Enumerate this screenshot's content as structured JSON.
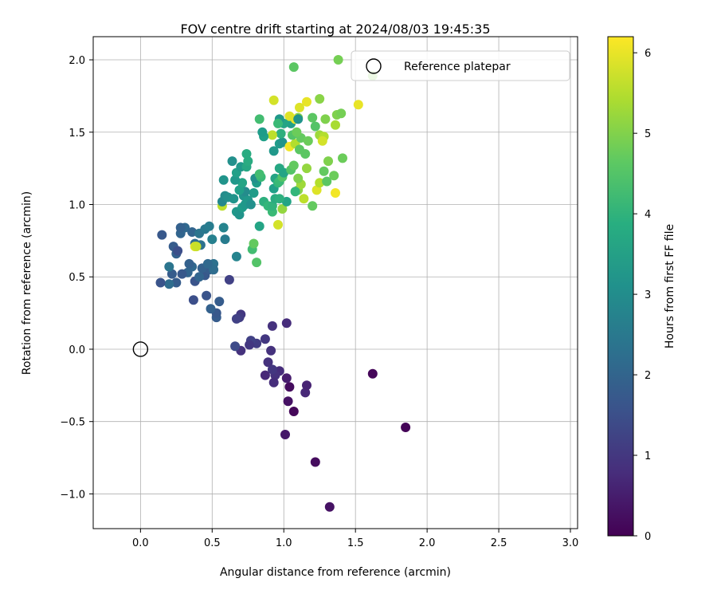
{
  "chart_data": {
    "type": "scatter",
    "title": "FOV centre drift starting at 2024/08/03 19:45:35",
    "xlabel": "Angular distance from reference (arcmin)",
    "ylabel": "Rotation from reference (arcmin)",
    "xlim": [
      -0.33,
      3.05
    ],
    "ylim": [
      -1.24,
      2.16
    ],
    "xticks": [
      0.0,
      0.5,
      1.0,
      1.5,
      2.0,
      2.5,
      3.0
    ],
    "xtick_labels": [
      "0.0",
      "0.5",
      "1.0",
      "1.5",
      "2.0",
      "2.5",
      "3.0"
    ],
    "yticks": [
      -1.0,
      -0.5,
      0.0,
      0.5,
      1.0,
      1.5,
      2.0
    ],
    "ytick_labels": [
      "−1.0",
      "−0.5",
      "0.0",
      "0.5",
      "1.0",
      "1.5",
      "2.0"
    ],
    "grid": true,
    "legend": {
      "placement": "top-right",
      "entries": [
        "Reference platepar"
      ]
    },
    "reference_point": {
      "x": 0.0,
      "y": 0.0
    },
    "colorbar": {
      "label": "Hours from first FF file",
      "range": [
        0,
        6.2
      ],
      "ticks": [
        0,
        1,
        2,
        3,
        4,
        5,
        6
      ],
      "tick_labels": [
        "0",
        "1",
        "2",
        "3",
        "4",
        "5",
        "6"
      ],
      "colormap": "viridis"
    },
    "point_fields": [
      "x",
      "y",
      "hours"
    ],
    "points": [
      [
        1.32,
        -1.09,
        0.3
      ],
      [
        1.22,
        -0.78,
        0.2
      ],
      [
        1.01,
        -0.59,
        0.4
      ],
      [
        1.85,
        -0.54,
        0.05
      ],
      [
        1.62,
        -0.17,
        0.1
      ],
      [
        1.07,
        -0.43,
        0.1
      ],
      [
        1.03,
        -0.36,
        0.3
      ],
      [
        1.15,
        -0.3,
        0.7
      ],
      [
        1.16,
        -0.25,
        0.6
      ],
      [
        1.04,
        -0.26,
        0.2
      ],
      [
        1.02,
        -0.2,
        0.5
      ],
      [
        0.97,
        -0.15,
        0.8
      ],
      [
        0.94,
        -0.18,
        0.9
      ],
      [
        0.92,
        -0.14,
        1.0
      ],
      [
        0.89,
        -0.09,
        0.9
      ],
      [
        0.87,
        -0.18,
        0.7
      ],
      [
        0.93,
        -0.23,
        0.8
      ],
      [
        0.91,
        -0.01,
        0.9
      ],
      [
        0.87,
        0.07,
        1.0
      ],
      [
        0.81,
        0.04,
        1.1
      ],
      [
        0.77,
        0.06,
        1.2
      ],
      [
        0.76,
        0.03,
        1.0
      ],
      [
        0.7,
        -0.01,
        0.9
      ],
      [
        0.66,
        0.02,
        1.4
      ],
      [
        0.92,
        0.16,
        0.9
      ],
      [
        1.02,
        0.18,
        0.8
      ],
      [
        0.7,
        0.24,
        1.0
      ],
      [
        0.69,
        0.22,
        1.1
      ],
      [
        0.67,
        0.21,
        1.2
      ],
      [
        0.53,
        0.22,
        1.8
      ],
      [
        0.53,
        0.25,
        1.7
      ],
      [
        0.49,
        0.28,
        1.9
      ],
      [
        0.55,
        0.33,
        1.8
      ],
      [
        0.46,
        0.37,
        1.6
      ],
      [
        0.37,
        0.34,
        1.5
      ],
      [
        0.62,
        0.48,
        1.2
      ],
      [
        0.38,
        0.47,
        1.6
      ],
      [
        0.45,
        0.51,
        1.7
      ],
      [
        0.48,
        0.55,
        1.8
      ],
      [
        0.43,
        0.56,
        1.9
      ],
      [
        0.41,
        0.5,
        2.0
      ],
      [
        0.36,
        0.57,
        2.1
      ],
      [
        0.34,
        0.59,
        1.9
      ],
      [
        0.33,
        0.53,
        2.0
      ],
      [
        0.29,
        0.52,
        1.7
      ],
      [
        0.25,
        0.46,
        1.8
      ],
      [
        0.2,
        0.45,
        2.2
      ],
      [
        0.14,
        0.46,
        1.6
      ],
      [
        0.22,
        0.52,
        1.8
      ],
      [
        0.2,
        0.57,
        2.4
      ],
      [
        0.25,
        0.66,
        1.9
      ],
      [
        0.23,
        0.71,
        1.8
      ],
      [
        0.26,
        0.68,
        1.5
      ],
      [
        0.15,
        0.79,
        1.7
      ],
      [
        0.28,
        0.8,
        2.0
      ],
      [
        0.31,
        0.84,
        2.1
      ],
      [
        0.28,
        0.84,
        1.9
      ],
      [
        0.36,
        0.81,
        2.0
      ],
      [
        0.38,
        0.73,
        2.2
      ],
      [
        0.42,
        0.72,
        2.3
      ],
      [
        0.41,
        0.8,
        2.4
      ],
      [
        0.45,
        0.83,
        2.5
      ],
      [
        0.48,
        0.85,
        2.6
      ],
      [
        0.5,
        0.76,
        2.7
      ],
      [
        0.58,
        0.84,
        2.8
      ],
      [
        0.59,
        0.76,
        2.6
      ],
      [
        0.51,
        0.59,
        2.3
      ],
      [
        0.51,
        0.55,
        2.2
      ],
      [
        0.47,
        0.59,
        2.1
      ],
      [
        0.38,
        0.71,
        5.9
      ],
      [
        0.39,
        0.71,
        5.7
      ],
      [
        0.67,
        0.64,
        2.8
      ],
      [
        0.78,
        0.69,
        4.3
      ],
      [
        0.81,
        0.6,
        4.5
      ],
      [
        0.79,
        0.73,
        4.7
      ],
      [
        0.83,
        0.85,
        3.6
      ],
      [
        0.57,
        0.99,
        5.6
      ],
      [
        0.57,
        1.02,
        2.9
      ],
      [
        0.59,
        1.06,
        3.0
      ],
      [
        0.61,
        1.05,
        3.1
      ],
      [
        0.65,
        1.04,
        3.2
      ],
      [
        0.67,
        0.95,
        3.3
      ],
      [
        0.69,
        0.93,
        3.2
      ],
      [
        0.71,
        0.98,
        3.4
      ],
      [
        0.73,
        1.0,
        3.3
      ],
      [
        0.72,
        1.06,
        3.2
      ],
      [
        0.75,
        1.03,
        3.3
      ],
      [
        0.77,
        1.0,
        3.1
      ],
      [
        0.79,
        1.08,
        3.4
      ],
      [
        0.73,
        1.09,
        3.0
      ],
      [
        0.69,
        1.1,
        3.5
      ],
      [
        0.71,
        1.15,
        3.6
      ],
      [
        0.66,
        1.17,
        3.3
      ],
      [
        0.58,
        1.17,
        3.2
      ],
      [
        0.64,
        1.3,
        3.1
      ],
      [
        0.67,
        1.22,
        3.5
      ],
      [
        0.7,
        1.26,
        3.3
      ],
      [
        0.74,
        1.26,
        3.7
      ],
      [
        0.75,
        1.3,
        3.8
      ],
      [
        0.74,
        1.35,
        3.8
      ],
      [
        0.81,
        1.15,
        3.4
      ],
      [
        0.8,
        1.18,
        3.1
      ],
      [
        0.84,
        1.19,
        4.2
      ],
      [
        0.83,
        1.21,
        4.3
      ],
      [
        0.86,
        1.02,
        3.9
      ],
      [
        0.89,
        0.99,
        4.1
      ],
      [
        0.92,
        0.95,
        4.2
      ],
      [
        0.92,
        0.99,
        4.0
      ],
      [
        0.99,
        0.97,
        5.2
      ],
      [
        0.96,
        0.86,
        5.8
      ],
      [
        1.02,
        1.02,
        3.6
      ],
      [
        0.94,
        1.04,
        3.8
      ],
      [
        0.97,
        1.04,
        3.9
      ],
      [
        0.93,
        1.11,
        3.5
      ],
      [
        0.94,
        1.18,
        3.6
      ],
      [
        0.96,
        1.15,
        4.1
      ],
      [
        0.97,
        1.16,
        4.2
      ],
      [
        0.99,
        1.19,
        4.5
      ],
      [
        0.97,
        1.25,
        3.7
      ],
      [
        1.0,
        1.22,
        3.6
      ],
      [
        1.05,
        1.24,
        4.5
      ],
      [
        1.07,
        1.27,
        4.7
      ],
      [
        1.1,
        1.1,
        5.1
      ],
      [
        1.12,
        1.14,
        5.3
      ],
      [
        1.1,
        1.18,
        5.0
      ],
      [
        1.08,
        1.09,
        4.1
      ],
      [
        1.14,
        1.04,
        5.6
      ],
      [
        1.2,
        0.99,
        4.7
      ],
      [
        1.23,
        1.1,
        5.9
      ],
      [
        1.25,
        1.15,
        5.5
      ],
      [
        1.3,
        1.16,
        4.6
      ],
      [
        1.36,
        1.08,
        6.1
      ],
      [
        1.35,
        1.2,
        4.8
      ],
      [
        1.28,
        1.23,
        4.7
      ],
      [
        1.31,
        1.3,
        5.0
      ],
      [
        1.41,
        1.32,
        4.8
      ],
      [
        1.16,
        1.25,
        5.2
      ],
      [
        1.15,
        1.35,
        4.6
      ],
      [
        0.93,
        1.37,
        3.3
      ],
      [
        0.97,
        1.42,
        3.4
      ],
      [
        0.99,
        1.43,
        3.2
      ],
      [
        0.98,
        1.49,
        3.9
      ],
      [
        1.04,
        1.4,
        6.1
      ],
      [
        1.08,
        1.42,
        5.5
      ],
      [
        1.11,
        1.38,
        4.6
      ],
      [
        1.12,
        1.46,
        4.7
      ],
      [
        1.06,
        1.48,
        4.5
      ],
      [
        1.09,
        1.5,
        4.8
      ],
      [
        1.1,
        1.6,
        5.0
      ],
      [
        1.05,
        1.56,
        3.5
      ],
      [
        1.08,
        1.59,
        6.0
      ],
      [
        1.04,
        1.61,
        5.9
      ],
      [
        1.0,
        1.56,
        3.6
      ],
      [
        0.97,
        1.59,
        3.3
      ],
      [
        0.96,
        1.56,
        4.2
      ],
      [
        0.92,
        1.48,
        5.6
      ],
      [
        0.86,
        1.47,
        3.5
      ],
      [
        0.85,
        1.5,
        3.4
      ],
      [
        0.83,
        1.59,
        4.3
      ],
      [
        1.1,
        1.59,
        3.2
      ],
      [
        1.17,
        1.44,
        4.8
      ],
      [
        1.2,
        1.6,
        4.6
      ],
      [
        1.22,
        1.54,
        4.5
      ],
      [
        1.25,
        1.48,
        5.3
      ],
      [
        1.28,
        1.47,
        5.5
      ],
      [
        1.27,
        1.44,
        5.8
      ],
      [
        1.29,
        1.59,
        5.0
      ],
      [
        1.36,
        1.55,
        5.4
      ],
      [
        1.37,
        1.62,
        5.0
      ],
      [
        1.4,
        1.63,
        4.9
      ],
      [
        1.25,
        1.73,
        5.1
      ],
      [
        1.16,
        1.71,
        6.0
      ],
      [
        1.11,
        1.67,
        5.9
      ],
      [
        0.93,
        1.72,
        5.8
      ],
      [
        1.07,
        1.95,
        4.6
      ],
      [
        1.38,
        2.0,
        4.9
      ],
      [
        1.62,
        1.89,
        5.0
      ],
      [
        1.52,
        1.69,
        6.0
      ]
    ]
  }
}
